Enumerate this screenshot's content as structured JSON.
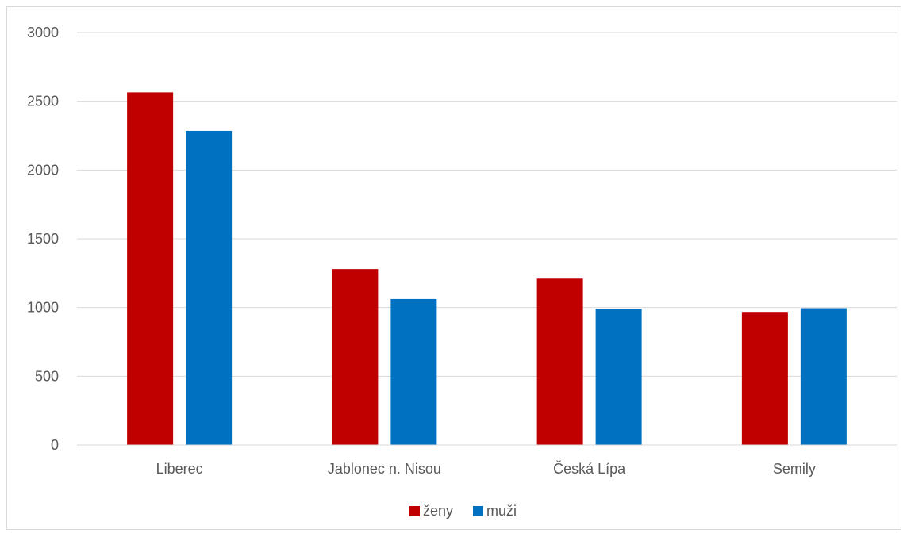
{
  "chart_data": {
    "type": "bar",
    "title": "",
    "xlabel": "",
    "ylabel": "",
    "categories": [
      "Liberec",
      "Jablonec n. Nisou",
      "Česká Lípa",
      "Semily"
    ],
    "series": [
      {
        "name": "ženy",
        "color": "#C00000",
        "values": [
          2565,
          1280,
          1210,
          968
        ]
      },
      {
        "name": "muži",
        "color": "#0070C0",
        "values": [
          2285,
          1062,
          990,
          995
        ]
      }
    ],
    "ylim": [
      0,
      3000
    ],
    "yticks": [
      0,
      500,
      1000,
      1500,
      2000,
      2500,
      3000
    ],
    "grid": true,
    "legend_position": "bottom"
  }
}
